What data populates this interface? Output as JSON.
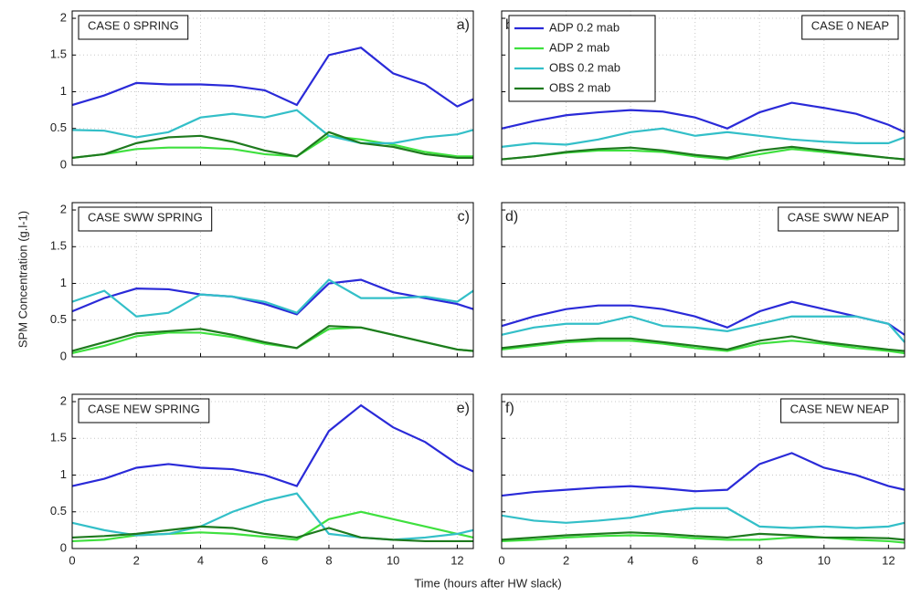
{
  "y_label": "SPM Concentration (g.l-1)",
  "x_label": "Time (hours after HW slack)",
  "chart_data": [
    {
      "type": "line",
      "title": "CASE 0 SPRING",
      "panel_label": "a)",
      "title_position": "left",
      "x": [
        0,
        1,
        2,
        3,
        4,
        5,
        6,
        7,
        8,
        9,
        10,
        11,
        12,
        12.5
      ],
      "xlim": [
        0,
        12.5
      ],
      "ylim": [
        0,
        2.1
      ],
      "xticks": [
        0,
        2,
        4,
        6,
        8,
        10,
        12
      ],
      "yticks": [
        0,
        0.5,
        1,
        1.5,
        2
      ],
      "show_xticklabels": false,
      "show_yticklabels": true,
      "grid": true,
      "series": [
        {
          "name": "ADP 0.2 mab",
          "color": "#2a2ad8",
          "values": [
            0.82,
            0.95,
            1.12,
            1.1,
            1.1,
            1.08,
            1.02,
            0.82,
            1.5,
            1.6,
            1.25,
            1.1,
            0.8,
            0.9
          ]
        },
        {
          "name": "ADP 2 mab",
          "color": "#3fe03f",
          "values": [
            0.1,
            0.15,
            0.22,
            0.24,
            0.24,
            0.22,
            0.15,
            0.12,
            0.4,
            0.35,
            0.28,
            0.18,
            0.12,
            0.12
          ]
        },
        {
          "name": "OBS 0.2 mab",
          "color": "#33bfc8",
          "values": [
            0.48,
            0.47,
            0.38,
            0.45,
            0.65,
            0.7,
            0.65,
            0.75,
            0.4,
            0.3,
            0.3,
            0.38,
            0.42,
            0.48
          ]
        },
        {
          "name": "OBS 2 mab",
          "color": "#1e7a1e",
          "values": [
            0.1,
            0.15,
            0.3,
            0.38,
            0.4,
            0.32,
            0.2,
            0.12,
            0.45,
            0.3,
            0.25,
            0.15,
            0.1,
            0.1
          ]
        }
      ]
    },
    {
      "type": "line",
      "title": "CASE 0 NEAP",
      "panel_label": "b)",
      "title_position": "right",
      "legend": "upper-left",
      "x": [
        0,
        1,
        2,
        3,
        4,
        5,
        6,
        7,
        8,
        9,
        10,
        11,
        12,
        12.5
      ],
      "xlim": [
        0,
        12.5
      ],
      "ylim": [
        0,
        2.1
      ],
      "xticks": [
        0,
        2,
        4,
        6,
        8,
        10,
        12
      ],
      "yticks": [
        0,
        0.5,
        1,
        1.5,
        2
      ],
      "show_xticklabels": false,
      "show_yticklabels": false,
      "grid": true,
      "series": [
        {
          "name": "ADP 0.2 mab",
          "color": "#2a2ad8",
          "values": [
            0.5,
            0.6,
            0.68,
            0.72,
            0.75,
            0.73,
            0.65,
            0.5,
            0.72,
            0.85,
            0.78,
            0.7,
            0.55,
            0.45
          ]
        },
        {
          "name": "ADP 2 mab",
          "color": "#3fe03f",
          "values": [
            0.08,
            0.12,
            0.17,
            0.2,
            0.2,
            0.18,
            0.12,
            0.08,
            0.15,
            0.22,
            0.18,
            0.14,
            0.1,
            0.08
          ]
        },
        {
          "name": "OBS 0.2 mab",
          "color": "#33bfc8",
          "values": [
            0.25,
            0.3,
            0.28,
            0.35,
            0.45,
            0.5,
            0.4,
            0.45,
            0.4,
            0.35,
            0.32,
            0.3,
            0.3,
            0.38
          ]
        },
        {
          "name": "OBS 2 mab",
          "color": "#1e7a1e",
          "values": [
            0.08,
            0.12,
            0.18,
            0.22,
            0.24,
            0.2,
            0.14,
            0.1,
            0.2,
            0.25,
            0.2,
            0.15,
            0.1,
            0.08
          ]
        }
      ]
    },
    {
      "type": "line",
      "title": "CASE SWW SPRING",
      "panel_label": "c)",
      "title_position": "left",
      "x": [
        0,
        1,
        2,
        3,
        4,
        5,
        6,
        7,
        8,
        9,
        10,
        11,
        12,
        12.5
      ],
      "xlim": [
        0,
        12.5
      ],
      "ylim": [
        0,
        2.1
      ],
      "xticks": [
        0,
        2,
        4,
        6,
        8,
        10,
        12
      ],
      "yticks": [
        0,
        0.5,
        1,
        1.5,
        2
      ],
      "show_xticklabels": false,
      "show_yticklabels": true,
      "grid": true,
      "series": [
        {
          "name": "ADP 0.2 mab",
          "color": "#2a2ad8",
          "values": [
            0.62,
            0.8,
            0.93,
            0.92,
            0.85,
            0.82,
            0.72,
            0.58,
            1.0,
            1.05,
            0.88,
            0.8,
            0.72,
            0.65
          ]
        },
        {
          "name": "ADP 2 mab",
          "color": "#3fe03f",
          "values": [
            0.05,
            0.15,
            0.28,
            0.33,
            0.33,
            0.27,
            0.18,
            0.12,
            0.38,
            0.4,
            0.3,
            0.2,
            0.1,
            0.08
          ]
        },
        {
          "name": "OBS 0.2 mab",
          "color": "#33bfc8",
          "values": [
            0.75,
            0.9,
            0.55,
            0.6,
            0.85,
            0.82,
            0.75,
            0.6,
            1.05,
            0.8,
            0.8,
            0.82,
            0.75,
            0.9
          ]
        },
        {
          "name": "OBS 2 mab",
          "color": "#1e7a1e",
          "values": [
            0.08,
            0.2,
            0.32,
            0.35,
            0.38,
            0.3,
            0.2,
            0.12,
            0.42,
            0.4,
            0.3,
            0.2,
            0.1,
            0.08
          ]
        }
      ]
    },
    {
      "type": "line",
      "title": "CASE SWW NEAP",
      "panel_label": "d)",
      "title_position": "right",
      "x": [
        0,
        1,
        2,
        3,
        4,
        5,
        6,
        7,
        8,
        9,
        10,
        11,
        12,
        12.5
      ],
      "xlim": [
        0,
        12.5
      ],
      "ylim": [
        0,
        2.1
      ],
      "xticks": [
        0,
        2,
        4,
        6,
        8,
        10,
        12
      ],
      "yticks": [
        0,
        0.5,
        1,
        1.5,
        2
      ],
      "show_xticklabels": false,
      "show_yticklabels": false,
      "grid": true,
      "series": [
        {
          "name": "ADP 0.2 mab",
          "color": "#2a2ad8",
          "values": [
            0.42,
            0.55,
            0.65,
            0.7,
            0.7,
            0.65,
            0.55,
            0.4,
            0.62,
            0.75,
            0.65,
            0.55,
            0.45,
            0.3
          ]
        },
        {
          "name": "ADP 2 mab",
          "color": "#3fe03f",
          "values": [
            0.1,
            0.15,
            0.2,
            0.22,
            0.22,
            0.18,
            0.12,
            0.08,
            0.18,
            0.22,
            0.18,
            0.12,
            0.08,
            0.05
          ]
        },
        {
          "name": "OBS 0.2 mab",
          "color": "#33bfc8",
          "values": [
            0.3,
            0.4,
            0.45,
            0.45,
            0.55,
            0.42,
            0.4,
            0.35,
            0.45,
            0.55,
            0.55,
            0.55,
            0.45,
            0.2
          ]
        },
        {
          "name": "OBS 2 mab",
          "color": "#1e7a1e",
          "values": [
            0.12,
            0.17,
            0.22,
            0.25,
            0.25,
            0.2,
            0.15,
            0.1,
            0.22,
            0.28,
            0.2,
            0.15,
            0.1,
            0.08
          ]
        }
      ]
    },
    {
      "type": "line",
      "title": "CASE NEW SPRING",
      "panel_label": "e)",
      "title_position": "left",
      "x": [
        0,
        1,
        2,
        3,
        4,
        5,
        6,
        7,
        8,
        9,
        10,
        11,
        12,
        12.5
      ],
      "xlim": [
        0,
        12.5
      ],
      "ylim": [
        0,
        2.1
      ],
      "xticks": [
        0,
        2,
        4,
        6,
        8,
        10,
        12
      ],
      "yticks": [
        0,
        0.5,
        1,
        1.5,
        2
      ],
      "show_xticklabels": true,
      "show_yticklabels": true,
      "grid": true,
      "series": [
        {
          "name": "ADP 0.2 mab",
          "color": "#2a2ad8",
          "values": [
            0.85,
            0.95,
            1.1,
            1.15,
            1.1,
            1.08,
            1.0,
            0.85,
            1.6,
            1.95,
            1.65,
            1.45,
            1.15,
            1.05
          ]
        },
        {
          "name": "ADP 2 mab",
          "color": "#3fe03f",
          "values": [
            0.1,
            0.12,
            0.18,
            0.2,
            0.22,
            0.2,
            0.16,
            0.12,
            0.4,
            0.5,
            0.4,
            0.3,
            0.2,
            0.15
          ]
        },
        {
          "name": "OBS 0.2 mab",
          "color": "#33bfc8",
          "values": [
            0.35,
            0.25,
            0.18,
            0.2,
            0.3,
            0.5,
            0.65,
            0.75,
            0.2,
            0.15,
            0.12,
            0.15,
            0.2,
            0.25
          ]
        },
        {
          "name": "OBS 2 mab",
          "color": "#1e7a1e",
          "values": [
            0.15,
            0.17,
            0.2,
            0.25,
            0.3,
            0.28,
            0.2,
            0.15,
            0.28,
            0.15,
            0.12,
            0.1,
            0.1,
            0.1
          ]
        }
      ]
    },
    {
      "type": "line",
      "title": "CASE NEW NEAP",
      "panel_label": "f)",
      "title_position": "right",
      "x": [
        0,
        1,
        2,
        3,
        4,
        5,
        6,
        7,
        8,
        9,
        10,
        11,
        12,
        12.5
      ],
      "xlim": [
        0,
        12.5
      ],
      "ylim": [
        0,
        2.1
      ],
      "xticks": [
        0,
        2,
        4,
        6,
        8,
        10,
        12
      ],
      "yticks": [
        0,
        0.5,
        1,
        1.5,
        2
      ],
      "show_xticklabels": true,
      "show_yticklabels": false,
      "grid": true,
      "series": [
        {
          "name": "ADP 0.2 mab",
          "color": "#2a2ad8",
          "values": [
            0.72,
            0.77,
            0.8,
            0.83,
            0.85,
            0.82,
            0.78,
            0.8,
            1.15,
            1.3,
            1.1,
            1.0,
            0.85,
            0.8
          ]
        },
        {
          "name": "ADP 2 mab",
          "color": "#3fe03f",
          "values": [
            0.1,
            0.12,
            0.15,
            0.17,
            0.18,
            0.17,
            0.14,
            0.12,
            0.12,
            0.15,
            0.15,
            0.12,
            0.1,
            0.08
          ]
        },
        {
          "name": "OBS 0.2 mab",
          "color": "#33bfc8",
          "values": [
            0.45,
            0.38,
            0.35,
            0.38,
            0.42,
            0.5,
            0.55,
            0.55,
            0.3,
            0.28,
            0.3,
            0.28,
            0.3,
            0.35
          ]
        },
        {
          "name": "OBS 2 mab",
          "color": "#1e7a1e",
          "values": [
            0.12,
            0.15,
            0.18,
            0.2,
            0.22,
            0.2,
            0.17,
            0.15,
            0.2,
            0.18,
            0.15,
            0.15,
            0.14,
            0.12
          ]
        }
      ]
    }
  ]
}
